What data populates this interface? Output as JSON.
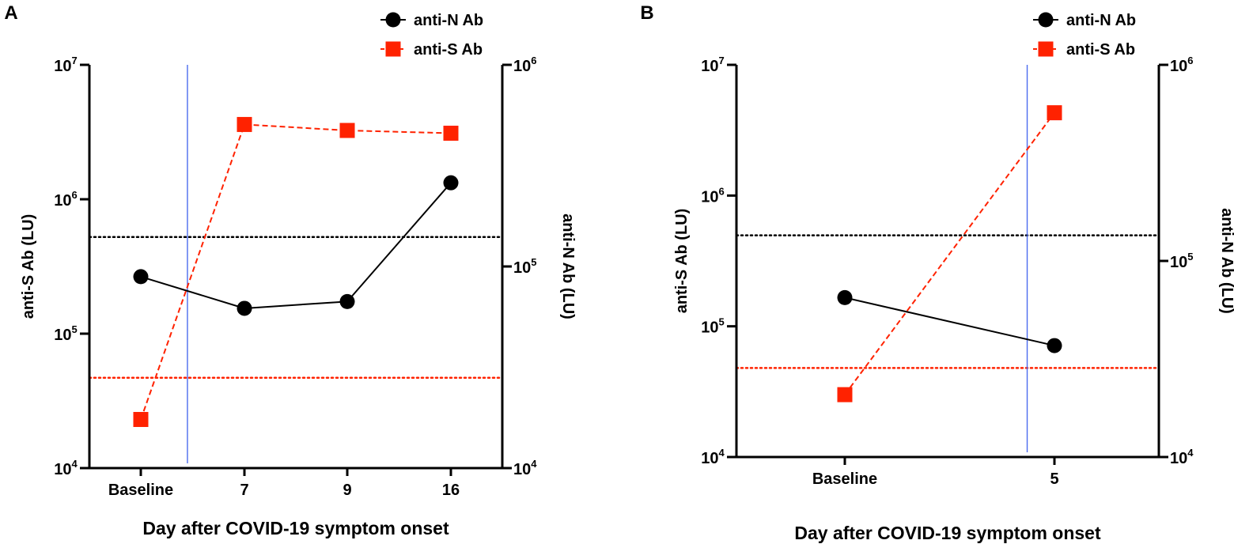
{
  "chart_data": [
    {
      "panel": "A",
      "type": "line",
      "xlabel": "Day after COVID-19 symptom onset",
      "ylabel_left": "anti-S Ab (LU)",
      "ylabel_right": "anti-N Ab (LU)",
      "categories": [
        "Baseline",
        "7",
        "9",
        "16"
      ],
      "yscale": "log",
      "ylim_left": [
        10000,
        10000000
      ],
      "ylim_right": [
        10000,
        1000000
      ],
      "left_ticks": [
        {
          "value": 10000,
          "base": "10",
          "exp": "4"
        },
        {
          "value": 100000,
          "base": "10",
          "exp": "5"
        },
        {
          "value": 1000000,
          "base": "10",
          "exp": "6"
        },
        {
          "value": 10000000,
          "base": "10",
          "exp": "7"
        }
      ],
      "right_ticks": [
        {
          "value": 10000,
          "base": "10",
          "exp": "4"
        },
        {
          "value": 100000,
          "base": "10",
          "exp": "5"
        },
        {
          "value": 1000000,
          "base": "10",
          "exp": "6"
        }
      ],
      "series": [
        {
          "name": "anti-N Ab",
          "axis": "right",
          "color": "#000000",
          "marker": "circle",
          "line": "solid",
          "values": [
            89000,
            62000,
            67000,
            260000
          ]
        },
        {
          "name": "anti-S Ab",
          "axis": "left",
          "color": "#ff2200",
          "marker": "square",
          "line": "dashed",
          "values": [
            23000,
            3600000,
            3250000,
            3100000
          ]
        }
      ],
      "thresholds": [
        {
          "name": "anti-N cutoff",
          "axis": "right",
          "value": 140000,
          "color": "#000000"
        },
        {
          "name": "anti-S cutoff",
          "axis": "left",
          "value": 47000,
          "color": "#ff2200"
        }
      ],
      "vertical_marker": {
        "between": [
          "Baseline",
          "7"
        ],
        "position": 0.45,
        "color": "#4a6bef"
      }
    },
    {
      "panel": "B",
      "type": "line",
      "xlabel": "Day after COVID-19 symptom onset",
      "ylabel_left": "anti-S Ab (LU)",
      "ylabel_right": "anti-N Ab (LU)",
      "categories": [
        "Baseline",
        "5"
      ],
      "yscale": "log",
      "ylim_left": [
        10000,
        10000000
      ],
      "ylim_right": [
        10000,
        1000000
      ],
      "left_ticks": [
        {
          "value": 10000,
          "base": "10",
          "exp": "4"
        },
        {
          "value": 100000,
          "base": "10",
          "exp": "5"
        },
        {
          "value": 1000000,
          "base": "10",
          "exp": "6"
        },
        {
          "value": 10000000,
          "base": "10",
          "exp": "7"
        }
      ],
      "right_ticks": [
        {
          "value": 10000,
          "base": "10",
          "exp": "4"
        },
        {
          "value": 100000,
          "base": "10",
          "exp": "5"
        },
        {
          "value": 1000000,
          "base": "10",
          "exp": "6"
        }
      ],
      "series": [
        {
          "name": "anti-N Ab",
          "axis": "right",
          "color": "#000000",
          "marker": "circle",
          "line": "solid",
          "values": [
            65000,
            37000
          ]
        },
        {
          "name": "anti-S Ab",
          "axis": "left",
          "color": "#ff2200",
          "marker": "square",
          "line": "dashed",
          "values": [
            30000,
            4300000
          ]
        }
      ],
      "thresholds": [
        {
          "name": "anti-N cutoff",
          "axis": "right",
          "value": 135000,
          "color": "#000000"
        },
        {
          "name": "anti-S cutoff",
          "axis": "left",
          "value": 48000,
          "color": "#ff2200"
        }
      ],
      "vertical_marker": {
        "between": [
          "Baseline",
          "5"
        ],
        "position": 0.87,
        "color": "#4a6bef"
      }
    }
  ]
}
